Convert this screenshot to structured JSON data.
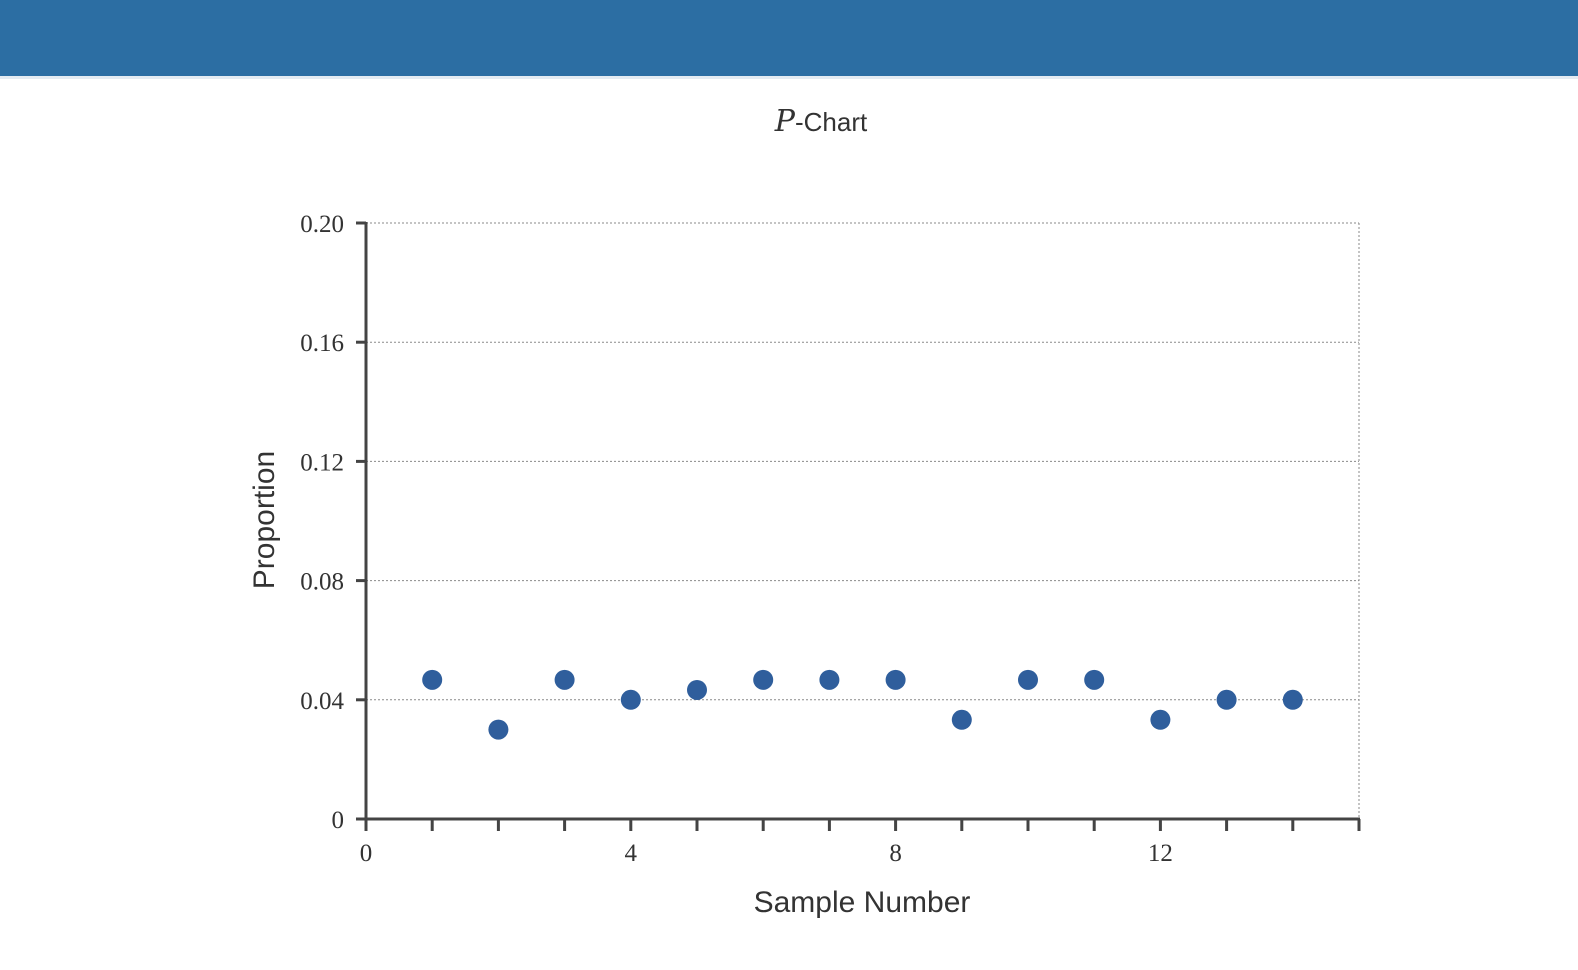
{
  "header": {
    "background_color": "#2c6ea3"
  },
  "chart_data": {
    "type": "scatter",
    "title": "P-Chart",
    "title_italic_part": "P",
    "title_rest": "-Chart",
    "xlabel": "Sample Number",
    "ylabel": "Proportion",
    "xlim": [
      0,
      15
    ],
    "ylim": [
      0,
      0.2
    ],
    "x_ticks": [
      0,
      1,
      2,
      3,
      4,
      5,
      6,
      7,
      8,
      9,
      10,
      11,
      12,
      13,
      14,
      15
    ],
    "x_tick_labels": [
      {
        "value": 0,
        "label": "0"
      },
      {
        "value": 4,
        "label": "4"
      },
      {
        "value": 8,
        "label": "8"
      },
      {
        "value": 12,
        "label": "12"
      }
    ],
    "y_ticks": [
      {
        "value": 0,
        "label": "0"
      },
      {
        "value": 0.04,
        "label": "0.04"
      },
      {
        "value": 0.08,
        "label": "0.08"
      },
      {
        "value": 0.12,
        "label": "0.12"
      },
      {
        "value": 0.16,
        "label": "0.16"
      },
      {
        "value": 0.2,
        "label": "0.20"
      }
    ],
    "grid": true,
    "point_color": "#2f5e9c",
    "series": [
      {
        "x": [
          1,
          2,
          3,
          4,
          5,
          6,
          7,
          8,
          9,
          10,
          11,
          12,
          13,
          14
        ],
        "y": [
          0.0467,
          0.03,
          0.0467,
          0.04,
          0.0433,
          0.0467,
          0.0467,
          0.0467,
          0.0333,
          0.0467,
          0.0467,
          0.0333,
          0.04,
          0.04
        ]
      }
    ]
  }
}
